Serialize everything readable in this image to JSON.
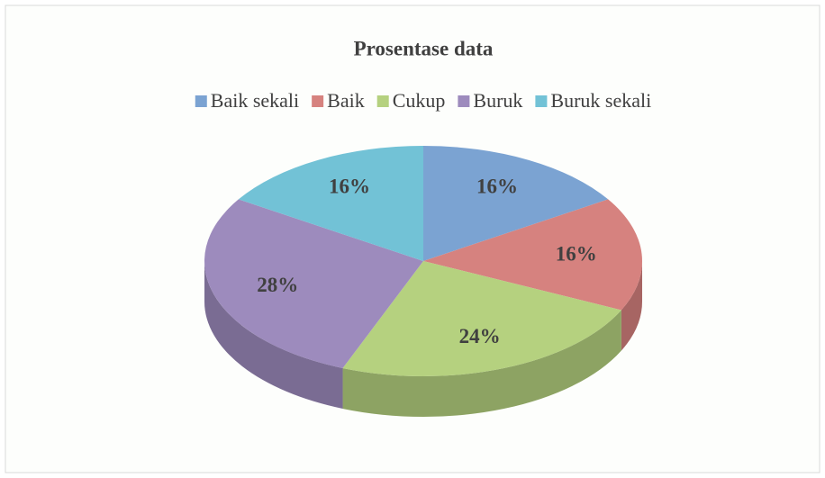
{
  "chart_data": {
    "type": "pie",
    "title": "Prosentase data",
    "categories": [
      "Baik sekali",
      "Baik",
      "Cukup",
      "Buruk",
      "Buruk sekali"
    ],
    "values": [
      16,
      16,
      24,
      28,
      16
    ],
    "value_labels": [
      "16%",
      "16%",
      "24%",
      "28%",
      "16%"
    ],
    "colors": [
      "#7ba3d2",
      "#d6827f",
      "#b5d17f",
      "#9d8bbd",
      "#72c2d6"
    ],
    "legend": "top"
  }
}
